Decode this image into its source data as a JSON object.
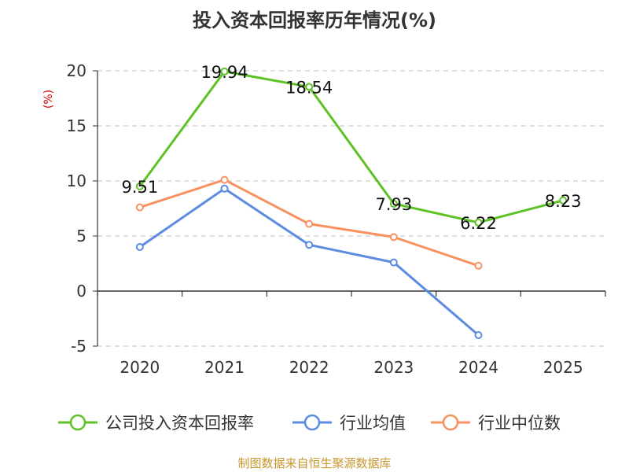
{
  "chart_data": {
    "type": "line",
    "title": "投入资本回报率历年情况(%)",
    "unit": "(%)",
    "categories": [
      "2020",
      "2021",
      "2022",
      "2023",
      "2024",
      "2025"
    ],
    "ylim": [
      -5,
      20
    ],
    "yticks": [
      -5,
      0,
      5,
      10,
      15,
      20
    ],
    "grid": true,
    "legend_position": "bottom",
    "series": [
      {
        "name": "公司投入资本回报率",
        "color": "#5ec226",
        "show_labels": true,
        "values": [
          9.51,
          19.94,
          18.54,
          7.93,
          6.22,
          8.23
        ],
        "labels": [
          "9.51",
          "19.94",
          "18.54",
          "7.93",
          "6.22",
          "8.23"
        ]
      },
      {
        "name": "行业均值",
        "color": "#5b8ce0",
        "show_labels": false,
        "values": [
          4.0,
          9.3,
          4.2,
          2.6,
          -4.0,
          null
        ]
      },
      {
        "name": "行业中位数",
        "color": "#f89160",
        "show_labels": false,
        "values": [
          7.6,
          10.1,
          6.1,
          4.9,
          2.3,
          null
        ]
      }
    ],
    "source": "制图数据来自恒生聚源数据库"
  }
}
